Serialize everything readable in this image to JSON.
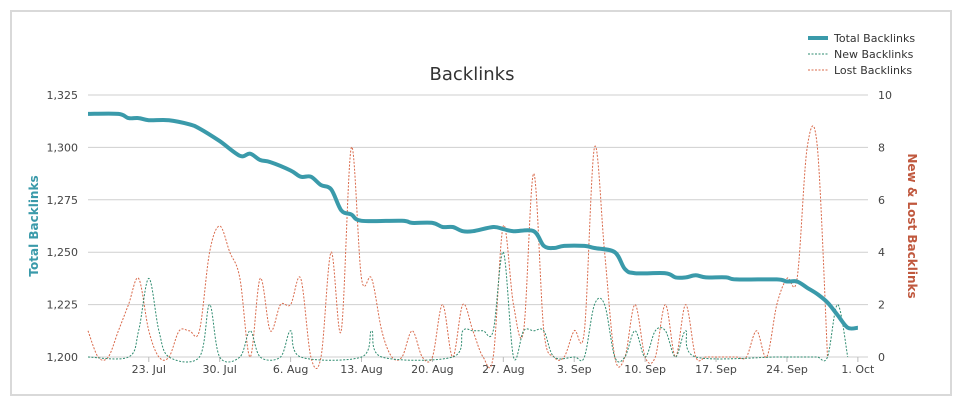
{
  "chart_data": {
    "type": "line",
    "title": "Backlinks",
    "y_left_label": "Total Backlinks",
    "y_right_label": "New & Lost Backlinks",
    "y_left_range": [
      1200,
      1325
    ],
    "y_left_ticks": [
      "1,200",
      "1,225",
      "1,250",
      "1,275",
      "1,300",
      "1,325"
    ],
    "y_right_range": [
      0,
      10
    ],
    "y_right_ticks": [
      "0",
      "2",
      "4",
      "6",
      "8",
      "10"
    ],
    "x_range": [
      "2014-07-17",
      "2014-10-02"
    ],
    "x_ticks": [
      {
        "date": "2014-07-23",
        "label": "23. Jul"
      },
      {
        "date": "2014-07-30",
        "label": "30. Jul"
      },
      {
        "date": "2014-08-06",
        "label": "6. Aug"
      },
      {
        "date": "2014-08-13",
        "label": "13. Aug"
      },
      {
        "date": "2014-08-20",
        "label": "20. Aug"
      },
      {
        "date": "2014-08-27",
        "label": "27. Aug"
      },
      {
        "date": "2014-09-03",
        "label": "3. Sep"
      },
      {
        "date": "2014-09-10",
        "label": "10. Sep"
      },
      {
        "date": "2014-09-17",
        "label": "17. Sep"
      },
      {
        "date": "2014-09-24",
        "label": "24. Sep"
      },
      {
        "date": "2014-10-01",
        "label": "1. Oct"
      }
    ],
    "grid": "horizontal",
    "legend_position": "top-right",
    "series": [
      {
        "name": "Total Backlinks",
        "axis": "left",
        "style": "solid-thick",
        "color": "#3a9aaa",
        "points": [
          [
            "2014-07-17",
            1316
          ],
          [
            "2014-07-20",
            1316
          ],
          [
            "2014-07-21",
            1314
          ],
          [
            "2014-07-22",
            1314
          ],
          [
            "2014-07-23",
            1313
          ],
          [
            "2014-07-25",
            1313
          ],
          [
            "2014-07-27",
            1311
          ],
          [
            "2014-07-28",
            1309
          ],
          [
            "2014-07-30",
            1303
          ],
          [
            "2014-08-01",
            1296
          ],
          [
            "2014-08-02",
            1297
          ],
          [
            "2014-08-03",
            1294
          ],
          [
            "2014-08-04",
            1293
          ],
          [
            "2014-08-06",
            1289
          ],
          [
            "2014-08-07",
            1286
          ],
          [
            "2014-08-08",
            1286
          ],
          [
            "2014-08-09",
            1282
          ],
          [
            "2014-08-10",
            1280
          ],
          [
            "2014-08-11",
            1270
          ],
          [
            "2014-08-12",
            1268
          ],
          [
            "2014-08-13",
            1265
          ],
          [
            "2014-08-17",
            1265
          ],
          [
            "2014-08-18",
            1264
          ],
          [
            "2014-08-20",
            1264
          ],
          [
            "2014-08-21",
            1262
          ],
          [
            "2014-08-22",
            1262
          ],
          [
            "2014-08-23",
            1260
          ],
          [
            "2014-08-24",
            1260
          ],
          [
            "2014-08-26",
            1262
          ],
          [
            "2014-08-27",
            1261
          ],
          [
            "2014-08-28",
            1260
          ],
          [
            "2014-08-30",
            1260
          ],
          [
            "2014-08-31",
            1253
          ],
          [
            "2014-09-01",
            1252
          ],
          [
            "2014-09-02",
            1253
          ],
          [
            "2014-09-04",
            1253
          ],
          [
            "2014-09-05",
            1252
          ],
          [
            "2014-09-07",
            1250
          ],
          [
            "2014-09-08",
            1242
          ],
          [
            "2014-09-09",
            1240
          ],
          [
            "2014-09-12",
            1240
          ],
          [
            "2014-09-13",
            1238
          ],
          [
            "2014-09-14",
            1238
          ],
          [
            "2014-09-15",
            1239
          ],
          [
            "2014-09-16",
            1238
          ],
          [
            "2014-09-18",
            1238
          ],
          [
            "2014-09-19",
            1237
          ],
          [
            "2014-09-23",
            1237
          ],
          [
            "2014-09-24",
            1236
          ],
          [
            "2014-09-25",
            1236
          ],
          [
            "2014-09-26",
            1233
          ],
          [
            "2014-09-27",
            1230
          ],
          [
            "2014-09-28",
            1226
          ],
          [
            "2014-09-29",
            1220
          ],
          [
            "2014-09-30",
            1214
          ],
          [
            "2014-10-01",
            1214
          ]
        ]
      },
      {
        "name": "New Backlinks",
        "axis": "right",
        "style": "dotted",
        "color": "#2e8b6f",
        "points": [
          [
            "2014-07-17",
            0
          ],
          [
            "2014-07-21",
            0
          ],
          [
            "2014-07-22",
            1
          ],
          [
            "2014-07-23",
            3
          ],
          [
            "2014-07-24",
            1
          ],
          [
            "2014-07-25",
            0
          ],
          [
            "2014-07-28",
            0
          ],
          [
            "2014-07-29",
            2
          ],
          [
            "2014-07-30",
            0
          ],
          [
            "2014-08-01",
            0
          ],
          [
            "2014-08-02",
            1
          ],
          [
            "2014-08-03",
            0
          ],
          [
            "2014-08-05",
            0
          ],
          [
            "2014-08-06",
            1
          ],
          [
            "2014-08-07",
            0
          ],
          [
            "2014-08-13",
            0
          ],
          [
            "2014-08-14",
            1
          ],
          [
            "2014-08-15",
            0
          ],
          [
            "2014-08-22",
            0
          ],
          [
            "2014-08-23",
            1
          ],
          [
            "2014-08-24",
            1
          ],
          [
            "2014-08-25",
            1
          ],
          [
            "2014-08-26",
            1
          ],
          [
            "2014-08-27",
            4
          ],
          [
            "2014-08-28",
            0
          ],
          [
            "2014-08-29",
            1
          ],
          [
            "2014-08-30",
            1
          ],
          [
            "2014-08-31",
            1
          ],
          [
            "2014-09-01",
            0
          ],
          [
            "2014-09-03",
            0
          ],
          [
            "2014-09-04",
            0
          ],
          [
            "2014-09-05",
            2
          ],
          [
            "2014-09-06",
            2
          ],
          [
            "2014-09-07",
            0
          ],
          [
            "2014-09-08",
            0
          ],
          [
            "2014-09-09",
            1
          ],
          [
            "2014-09-10",
            0
          ],
          [
            "2014-09-11",
            1
          ],
          [
            "2014-09-12",
            1
          ],
          [
            "2014-09-13",
            0
          ],
          [
            "2014-09-14",
            1
          ],
          [
            "2014-09-15",
            0
          ],
          [
            "2014-09-23",
            0
          ],
          [
            "2014-09-24",
            0
          ],
          [
            "2014-09-25",
            0
          ],
          [
            "2014-09-26",
            0
          ],
          [
            "2014-09-27",
            0
          ],
          [
            "2014-09-28",
            0
          ],
          [
            "2014-09-29",
            2
          ],
          [
            "2014-09-30",
            0
          ]
        ]
      },
      {
        "name": "Lost Backlinks",
        "axis": "right",
        "style": "dotted",
        "color": "#d9694a",
        "points": [
          [
            "2014-07-17",
            1
          ],
          [
            "2014-07-18",
            0
          ],
          [
            "2014-07-19",
            0
          ],
          [
            "2014-07-20",
            1
          ],
          [
            "2014-07-21",
            2
          ],
          [
            "2014-07-22",
            3
          ],
          [
            "2014-07-23",
            1
          ],
          [
            "2014-07-24",
            0
          ],
          [
            "2014-07-25",
            0
          ],
          [
            "2014-07-26",
            1
          ],
          [
            "2014-07-27",
            1
          ],
          [
            "2014-07-28",
            1
          ],
          [
            "2014-07-29",
            4
          ],
          [
            "2014-07-30",
            5
          ],
          [
            "2014-07-31",
            4
          ],
          [
            "2014-08-01",
            3
          ],
          [
            "2014-08-02",
            0
          ],
          [
            "2014-08-03",
            3
          ],
          [
            "2014-08-04",
            1
          ],
          [
            "2014-08-05",
            2
          ],
          [
            "2014-08-06",
            2
          ],
          [
            "2014-08-07",
            3
          ],
          [
            "2014-08-08",
            0
          ],
          [
            "2014-08-09",
            0
          ],
          [
            "2014-08-10",
            4
          ],
          [
            "2014-08-11",
            1
          ],
          [
            "2014-08-12",
            8
          ],
          [
            "2014-08-13",
            3
          ],
          [
            "2014-08-14",
            3
          ],
          [
            "2014-08-15",
            1
          ],
          [
            "2014-08-16",
            0
          ],
          [
            "2014-08-17",
            0
          ],
          [
            "2014-08-18",
            1
          ],
          [
            "2014-08-19",
            0
          ],
          [
            "2014-08-20",
            0
          ],
          [
            "2014-08-21",
            2
          ],
          [
            "2014-08-22",
            0
          ],
          [
            "2014-08-23",
            2
          ],
          [
            "2014-08-24",
            1
          ],
          [
            "2014-08-25",
            0
          ],
          [
            "2014-08-26",
            0
          ],
          [
            "2014-08-27",
            5
          ],
          [
            "2014-08-28",
            2
          ],
          [
            "2014-08-29",
            1
          ],
          [
            "2014-08-30",
            7
          ],
          [
            "2014-08-31",
            1
          ],
          [
            "2014-09-01",
            0
          ],
          [
            "2014-09-02",
            0
          ],
          [
            "2014-09-03",
            1
          ],
          [
            "2014-09-04",
            1
          ],
          [
            "2014-09-05",
            8
          ],
          [
            "2014-09-06",
            4
          ],
          [
            "2014-09-07",
            0
          ],
          [
            "2014-09-08",
            0
          ],
          [
            "2014-09-09",
            2
          ],
          [
            "2014-09-10",
            0
          ],
          [
            "2014-09-11",
            0
          ],
          [
            "2014-09-12",
            2
          ],
          [
            "2014-09-13",
            0
          ],
          [
            "2014-09-14",
            2
          ],
          [
            "2014-09-15",
            0
          ],
          [
            "2014-09-16",
            0
          ],
          [
            "2014-09-17",
            0
          ],
          [
            "2014-09-18",
            0
          ],
          [
            "2014-09-19",
            0
          ],
          [
            "2014-09-20",
            0
          ],
          [
            "2014-09-21",
            1
          ],
          [
            "2014-09-22",
            0
          ],
          [
            "2014-09-23",
            2
          ],
          [
            "2014-09-24",
            3
          ],
          [
            "2014-09-25",
            3
          ],
          [
            "2014-09-26",
            8
          ],
          [
            "2014-09-27",
            8
          ],
          [
            "2014-09-28",
            0
          ]
        ]
      }
    ]
  }
}
